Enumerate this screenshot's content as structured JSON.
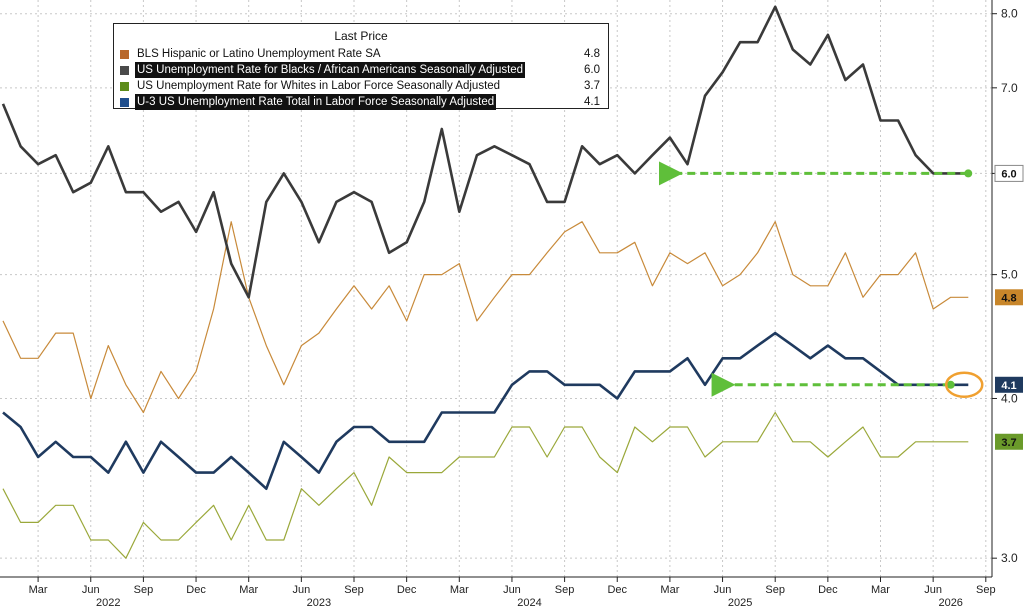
{
  "chart_data": {
    "type": "line",
    "y_scale": "log",
    "ylim": [
      2.9,
      8.2
    ],
    "y_ticks": [
      3.0,
      4.0,
      5.0,
      6.0,
      7.0,
      8.0
    ],
    "y_tick_labels": [
      "3.0",
      "4.0",
      "5.0",
      "6.0",
      "7.0",
      "8.0"
    ],
    "x_ticks": [
      {
        "date": "2022-03-01",
        "label": "Mar"
      },
      {
        "date": "2022-06-01",
        "label": "Jun"
      },
      {
        "date": "2022-09-01",
        "label": "Sep"
      },
      {
        "date": "2022-12-01",
        "label": "Dec"
      },
      {
        "date": "2023-03-01",
        "label": "Mar"
      },
      {
        "date": "2023-06-01",
        "label": "Jun"
      },
      {
        "date": "2023-09-01",
        "label": "Sep"
      },
      {
        "date": "2023-12-01",
        "label": "Dec"
      },
      {
        "date": "2024-03-01",
        "label": "Mar"
      },
      {
        "date": "2024-06-01",
        "label": "Jun"
      },
      {
        "date": "2024-09-01",
        "label": "Sep"
      },
      {
        "date": "2024-12-01",
        "label": "Dec"
      },
      {
        "date": "2025-03-01",
        "label": "Mar"
      },
      {
        "date": "2025-06-01",
        "label": "Jun"
      },
      {
        "date": "2025-09-01",
        "label": "Sep"
      },
      {
        "date": "2025-12-01",
        "label": "Dec"
      },
      {
        "date": "2026-03-01",
        "label": "Mar"
      },
      {
        "date": "2026-06-01",
        "label": "Jun"
      },
      {
        "date": "2026-09-01",
        "label": "Sep"
      }
    ],
    "x_years": [
      {
        "date": "2022-07-01",
        "label": "2022"
      },
      {
        "date": "2023-07-01",
        "label": "2023"
      },
      {
        "date": "2024-07-01",
        "label": "2024"
      },
      {
        "date": "2025-07-01",
        "label": "2025"
      },
      {
        "date": "2026-07-01",
        "label": "2026"
      }
    ],
    "x": [
      "2022-01",
      "2022-02",
      "2022-03",
      "2022-04",
      "2022-05",
      "2022-06",
      "2022-07",
      "2022-08",
      "2022-09",
      "2022-10",
      "2022-11",
      "2022-12",
      "2023-01",
      "2023-02",
      "2023-03",
      "2023-04",
      "2023-05",
      "2023-06",
      "2023-07",
      "2023-08",
      "2023-09",
      "2023-10",
      "2023-11",
      "2023-12",
      "2024-01",
      "2024-02",
      "2024-03",
      "2024-04",
      "2024-05",
      "2024-06",
      "2024-07",
      "2024-08",
      "2024-09",
      "2024-10",
      "2024-11",
      "2024-12",
      "2025-01",
      "2025-02",
      "2025-03",
      "2025-04",
      "2025-05",
      "2025-06",
      "2025-07",
      "2025-08",
      "2025-09",
      "2025-10",
      "2025-11",
      "2025-12",
      "2026-01",
      "2026-02",
      "2026-03",
      "2026-04",
      "2026-05",
      "2026-06",
      "2026-07",
      "2026-08"
    ],
    "legend_title": "Last Price",
    "series": [
      {
        "name": "BLS Hispanic or Latino Unemployment Rate SA",
        "last": "4.8",
        "color": "#c88a3a",
        "legend_color": "#b8672a",
        "values": [
          4.6,
          4.3,
          4.3,
          4.5,
          4.5,
          4.0,
          4.4,
          4.1,
          3.9,
          4.2,
          4.0,
          4.2,
          4.7,
          5.5,
          4.8,
          4.4,
          4.1,
          4.4,
          4.5,
          4.7,
          4.9,
          4.7,
          4.9,
          4.6,
          5.0,
          5.0,
          5.1,
          4.6,
          4.8,
          5.0,
          5.0,
          5.2,
          5.4,
          5.5,
          5.2,
          5.2,
          5.3,
          4.9,
          5.2,
          5.1,
          5.2,
          4.9,
          5.0,
          5.2,
          5.5,
          5.0,
          4.9,
          4.9,
          5.2,
          4.8,
          5.0,
          5.0,
          5.2,
          4.7,
          4.8,
          4.8
        ]
      },
      {
        "name": "US Unemployment Rate for Blacks / African Americans Seasonally Adjusted",
        "last": "6.0",
        "color": "#3a3a3a",
        "legend_color": "#4a4a4a",
        "values": [
          6.8,
          6.3,
          6.1,
          6.2,
          5.8,
          5.9,
          6.3,
          5.8,
          5.8,
          5.6,
          5.7,
          5.4,
          5.8,
          5.1,
          4.8,
          5.7,
          6.0,
          5.7,
          5.3,
          5.7,
          5.8,
          5.7,
          5.2,
          5.3,
          5.7,
          6.5,
          5.6,
          6.2,
          6.3,
          6.2,
          6.1,
          5.7,
          5.7,
          6.3,
          6.1,
          6.2,
          6.0,
          6.2,
          6.4,
          6.1,
          6.9,
          7.2,
          7.6,
          7.6,
          8.1,
          7.5,
          7.3,
          7.7,
          7.1,
          7.3,
          6.6,
          6.6,
          6.2,
          6.0,
          6.0,
          6.0
        ]
      },
      {
        "name": "US Unemployment Rate for Whites in Labor Force Seasonally Adjusted",
        "last": "3.7",
        "color": "#9aa83a",
        "legend_color": "#5c8c1a",
        "values": [
          3.4,
          3.2,
          3.2,
          3.3,
          3.3,
          3.1,
          3.1,
          3.0,
          3.2,
          3.1,
          3.1,
          3.2,
          3.3,
          3.1,
          3.3,
          3.1,
          3.1,
          3.4,
          3.3,
          3.4,
          3.5,
          3.3,
          3.6,
          3.5,
          3.5,
          3.5,
          3.6,
          3.6,
          3.6,
          3.8,
          3.8,
          3.6,
          3.8,
          3.8,
          3.6,
          3.5,
          3.8,
          3.7,
          3.8,
          3.8,
          3.6,
          3.7,
          3.7,
          3.7,
          3.9,
          3.7,
          3.7,
          3.6,
          3.7,
          3.8,
          3.6,
          3.6,
          3.7,
          3.7,
          3.7,
          3.7
        ]
      },
      {
        "name": "U-3 US Unemployment Rate Total in Labor Force Seasonally Adjusted",
        "last": "4.1",
        "color": "#1f3a5f",
        "legend_color": "#1f4e8c",
        "values": [
          3.9,
          3.8,
          3.6,
          3.7,
          3.6,
          3.6,
          3.5,
          3.7,
          3.5,
          3.7,
          3.6,
          3.5,
          3.5,
          3.6,
          3.5,
          3.4,
          3.7,
          3.6,
          3.5,
          3.7,
          3.8,
          3.8,
          3.7,
          3.7,
          3.7,
          3.9,
          3.9,
          3.9,
          3.9,
          4.1,
          4.2,
          4.2,
          4.1,
          4.1,
          4.1,
          4.0,
          4.2,
          4.2,
          4.2,
          4.3,
          4.1,
          4.3,
          4.3,
          4.4,
          4.5,
          4.4,
          4.3,
          4.4,
          4.3,
          4.3,
          4.2,
          4.1,
          4.1,
          4.1,
          4.1,
          4.1
        ]
      }
    ],
    "annotations": [
      {
        "type": "arrow",
        "style": "dashed",
        "color": "#5fbf3a",
        "from": {
          "x": "2026-08",
          "y": 6.0
        },
        "to": {
          "x": "2025-03",
          "y": 6.0
        }
      },
      {
        "type": "arrow",
        "style": "dashed",
        "color": "#5fbf3a",
        "from": {
          "x": "2026-07",
          "y": 4.1
        },
        "to": {
          "x": "2025-06",
          "y": 4.1
        }
      },
      {
        "type": "circle",
        "color": "#f0a030",
        "at": {
          "x": "2026-08",
          "y": 4.1
        }
      }
    ]
  }
}
